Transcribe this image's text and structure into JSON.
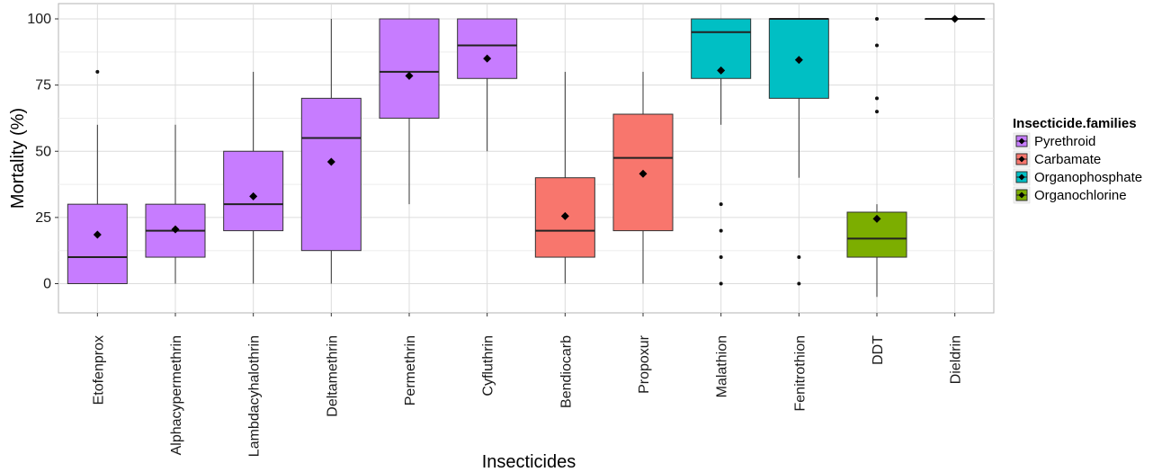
{
  "chart_data": {
    "type": "boxplot",
    "xlabel": "Insecticides",
    "ylabel": "Mortality (%)",
    "ylim": [
      -10,
      110
    ],
    "yticks": [
      0,
      25,
      50,
      75,
      100
    ],
    "grid": true,
    "legend": {
      "title": "Insecticide.families",
      "placement": "right",
      "entries": [
        {
          "name": "Pyrethroid",
          "color": "#C77CFF"
        },
        {
          "name": "Carbamate",
          "color": "#F8766D"
        },
        {
          "name": "Organophosphate",
          "color": "#00BFC4"
        },
        {
          "name": "Organochlorine",
          "color": "#7CAE00"
        }
      ]
    },
    "categories": [
      "Etofenprox",
      "Alphacypermethrin",
      "Lambdacyhalothrin",
      "Deltamethrin",
      "Permethrin",
      "Cyfluthrin",
      "Bendiocarb",
      "Propoxur",
      "Malathion",
      "Fenitrothion",
      "DDT",
      "Dieldrin"
    ],
    "boxes": [
      {
        "family": "Pyrethroid",
        "whisker_low": 0,
        "q1": 0,
        "median": 10,
        "q3": 30,
        "whisker_high": 60,
        "mean": 18.5,
        "outliers": [
          80
        ]
      },
      {
        "family": "Pyrethroid",
        "whisker_low": 0,
        "q1": 10,
        "median": 20,
        "q3": 30,
        "whisker_high": 60,
        "mean": 20.5,
        "outliers": []
      },
      {
        "family": "Pyrethroid",
        "whisker_low": 0,
        "q1": 20,
        "median": 30,
        "q3": 50,
        "whisker_high": 80,
        "mean": 33,
        "outliers": []
      },
      {
        "family": "Pyrethroid",
        "whisker_low": 0,
        "q1": 12.5,
        "median": 55,
        "q3": 70,
        "whisker_high": 100,
        "mean": 46,
        "outliers": []
      },
      {
        "family": "Pyrethroid",
        "whisker_low": 30,
        "q1": 62.5,
        "median": 80,
        "q3": 100,
        "whisker_high": 100,
        "mean": 78.5,
        "outliers": []
      },
      {
        "family": "Pyrethroid",
        "whisker_low": 50,
        "q1": 77.5,
        "median": 90,
        "q3": 100,
        "whisker_high": 100,
        "mean": 85,
        "outliers": []
      },
      {
        "family": "Carbamate",
        "whisker_low": 0,
        "q1": 10,
        "median": 20,
        "q3": 40,
        "whisker_high": 80,
        "mean": 25.5,
        "outliers": []
      },
      {
        "family": "Carbamate",
        "whisker_low": 0,
        "q1": 20,
        "median": 47.5,
        "q3": 64,
        "whisker_high": 80,
        "mean": 41.5,
        "outliers": []
      },
      {
        "family": "Organophosphate",
        "whisker_low": 60,
        "q1": 77.5,
        "median": 95,
        "q3": 100,
        "whisker_high": 100,
        "mean": 80.5,
        "outliers": [
          30,
          20,
          10,
          0
        ]
      },
      {
        "family": "Organophosphate",
        "whisker_low": 40,
        "q1": 70,
        "median": 100,
        "q3": 100,
        "whisker_high": 100,
        "mean": 84.5,
        "outliers": [
          10,
          0
        ]
      },
      {
        "family": "Organochlorine",
        "whisker_low": -5,
        "q1": 10,
        "median": 17,
        "q3": 27,
        "whisker_high": 30,
        "mean": 24.5,
        "outliers": [
          100,
          90,
          70,
          65
        ]
      },
      {
        "family": "Organochlorine",
        "whisker_low": 100,
        "q1": 100,
        "median": 100,
        "q3": 100,
        "whisker_high": 100,
        "mean": 100,
        "outliers": []
      }
    ]
  }
}
